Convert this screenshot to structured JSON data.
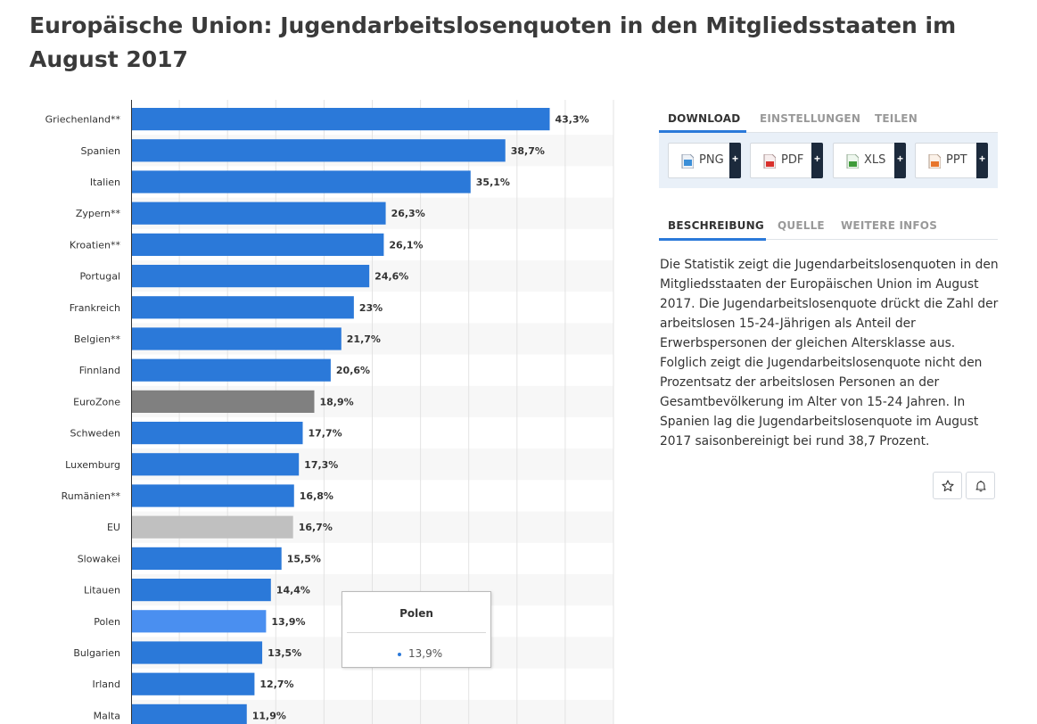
{
  "page": {
    "title": "Europäische Union: Jugendarbeitslosenquoten in den Mitgliedsstaaten im August 2017"
  },
  "tabs_top": [
    {
      "label": "DOWNLOAD",
      "active": true
    },
    {
      "label": "EINSTELLUNGEN",
      "active": false
    },
    {
      "label": "TEILEN",
      "active": false
    }
  ],
  "downloads": [
    {
      "label": "PNG",
      "icon": "png-file-icon",
      "color": "#3b8fd8",
      "plus": "+"
    },
    {
      "label": "PDF",
      "icon": "pdf-file-icon",
      "color": "#d9302c",
      "plus": "+"
    },
    {
      "label": "XLS",
      "icon": "xls-file-icon",
      "color": "#3f9b3a",
      "plus": "+"
    },
    {
      "label": "PPT",
      "icon": "ppt-file-icon",
      "color": "#e8762c",
      "plus": "+"
    }
  ],
  "tabs_bottom": [
    {
      "label": "BESCHREIBUNG",
      "active": true
    },
    {
      "label": "QUELLE",
      "active": false
    },
    {
      "label": "WEITERE INFOS",
      "active": false
    }
  ],
  "description": "Die Statistik zeigt die Jugendarbeitslosenquoten in den Mitgliedsstaaten der Europäischen Union im August 2017. Die Jugendarbeitslosenquote drückt die Zahl der arbeitslosen 15-24-Jährigen als Anteil der Erwerbspersonen der gleichen Altersklasse aus. Folglich zeigt die Jugendarbeitslosenquote nicht den Prozentsatz der arbeitslosen Personen an der Gesamtbevölkerung im Alter von 15-24 Jahren. In Spanien lag die Jugendarbeitslosenquote im August 2017 saisonbereinigt bei rund 38,7 Prozent.",
  "actions": [
    {
      "icon": "star-icon"
    },
    {
      "icon": "bell-icon"
    }
  ],
  "tooltip": {
    "title": "Polen",
    "value": "13,9%"
  },
  "chart_data": {
    "type": "bar",
    "orientation": "horizontal",
    "title": "Europäische Union: Jugendarbeitslosenquoten in den Mitgliedsstaaten im August 2017",
    "xlabel": "",
    "ylabel": "",
    "xlim": [
      0,
      50
    ],
    "grid": true,
    "colors": {
      "default": "#2b79d9",
      "eurozone": "#808080",
      "eu": "#c0c0c0",
      "highlight": "#4a8ff0"
    },
    "categories": [
      "Griechenland**",
      "Spanien",
      "Italien",
      "Zypern**",
      "Kroatien**",
      "Portugal",
      "Frankreich",
      "Belgien**",
      "Finnland",
      "EuroZone",
      "Schweden",
      "Luxemburg",
      "Rumänien**",
      "EU",
      "Slowakei",
      "Litauen",
      "Polen",
      "Bulgarien",
      "Irland",
      "Malta"
    ],
    "values": [
      43.3,
      38.7,
      35.1,
      26.3,
      26.1,
      24.6,
      23,
      21.7,
      20.6,
      18.9,
      17.7,
      17.3,
      16.8,
      16.7,
      15.5,
      14.4,
      13.9,
      13.5,
      12.7,
      11.9
    ],
    "value_labels": [
      "43,3%",
      "38,7%",
      "35,1%",
      "26,3%",
      "26,1%",
      "24,6%",
      "23%",
      "21,7%",
      "20,6%",
      "18,9%",
      "17,7%",
      "17,3%",
      "16,8%",
      "16,7%",
      "15,5%",
      "14,4%",
      "13,9%",
      "13,5%",
      "12,7%",
      "11,9%"
    ],
    "bar_color_keys": [
      "default",
      "default",
      "default",
      "default",
      "default",
      "default",
      "default",
      "default",
      "default",
      "eurozone",
      "default",
      "default",
      "default",
      "eu",
      "default",
      "default",
      "highlight",
      "default",
      "default",
      "default"
    ]
  }
}
